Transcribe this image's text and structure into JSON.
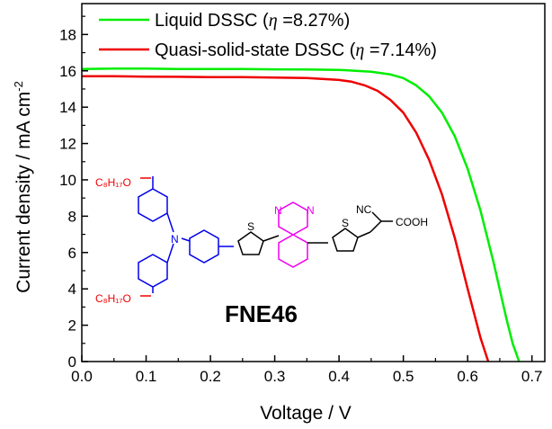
{
  "chart_data": {
    "type": "line",
    "xlabel": "Voltage  / V",
    "ylabel": "Current density / mA cm",
    "ylabel_exponent": "-2",
    "xlim": [
      0.0,
      0.72
    ],
    "ylim": [
      0,
      19.7
    ],
    "x_ticks": [
      0.0,
      0.1,
      0.2,
      0.3,
      0.4,
      0.5,
      0.6,
      0.7
    ],
    "x_tick_labels": [
      "0.0",
      "0.1",
      "0.2",
      "0.3",
      "0.4",
      "0.5",
      "0.6",
      "0.7"
    ],
    "y_ticks": [
      0,
      2,
      4,
      6,
      8,
      10,
      12,
      14,
      16,
      18
    ],
    "y_tick_labels": [
      "0",
      "2",
      "4",
      "6",
      "8",
      "10",
      "12",
      "14",
      "16",
      "18"
    ],
    "grid": false,
    "legend_position": "top-left",
    "series": [
      {
        "name": "Liquid DSSC (η =8.27%)",
        "legend_prefix": "Liquid DSSC (",
        "legend_symbol": "η",
        "legend_suffix": " =8.27%)",
        "color": "#00ee00",
        "x": [
          0.0,
          0.05,
          0.1,
          0.15,
          0.2,
          0.25,
          0.3,
          0.35,
          0.4,
          0.45,
          0.48,
          0.5,
          0.52,
          0.54,
          0.56,
          0.58,
          0.6,
          0.62,
          0.64,
          0.66,
          0.67,
          0.68
        ],
        "y": [
          16.1,
          16.12,
          16.12,
          16.1,
          16.1,
          16.1,
          16.08,
          16.07,
          16.05,
          15.95,
          15.8,
          15.6,
          15.2,
          14.6,
          13.7,
          12.4,
          10.6,
          8.3,
          5.5,
          2.4,
          1.0,
          0.0
        ]
      },
      {
        "name": "Quasi-solid-state DSSC (η =7.14%)",
        "legend_prefix": "Quasi-solid-state DSSC (",
        "legend_symbol": "η",
        "legend_suffix": " =7.14%)",
        "color": "#ee0000",
        "x": [
          0.0,
          0.05,
          0.1,
          0.15,
          0.2,
          0.25,
          0.3,
          0.35,
          0.4,
          0.42,
          0.44,
          0.46,
          0.48,
          0.5,
          0.52,
          0.54,
          0.56,
          0.58,
          0.6,
          0.62,
          0.632
        ],
        "y": [
          15.7,
          15.7,
          15.68,
          15.67,
          15.65,
          15.65,
          15.63,
          15.6,
          15.5,
          15.4,
          15.2,
          14.9,
          14.4,
          13.7,
          12.6,
          11.1,
          9.2,
          6.8,
          4.0,
          1.3,
          0.0
        ]
      }
    ]
  },
  "molecule": {
    "name": "FNE46",
    "colors": {
      "chain": "#ee0000",
      "donor": "#0000ee",
      "acceptor": "#ee00ee",
      "bridge": "#000000"
    },
    "labels": {
      "alkyl_top": "C₈H₁₇O",
      "alkyl_bottom": "C₈H₁₇O",
      "amine": "N",
      "sulfur_1": "S",
      "sulfur_2": "S",
      "n_top": "N",
      "n_bottom": "N",
      "nitrile": "NC",
      "acid": "COOH"
    }
  }
}
